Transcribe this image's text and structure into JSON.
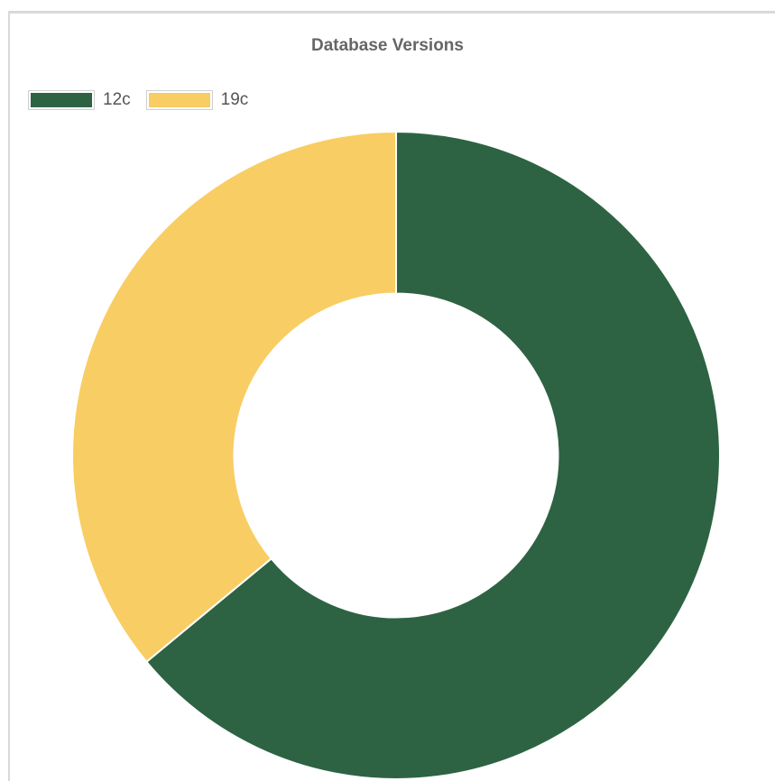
{
  "chart_data": {
    "type": "pie",
    "title": "Database Versions",
    "categories": [
      "12c",
      "19c"
    ],
    "values": [
      64,
      36
    ],
    "colors": [
      "#2d6343",
      "#f8cd63"
    ],
    "legend_position": "top-left",
    "inner_radius_ratio": 0.5
  }
}
